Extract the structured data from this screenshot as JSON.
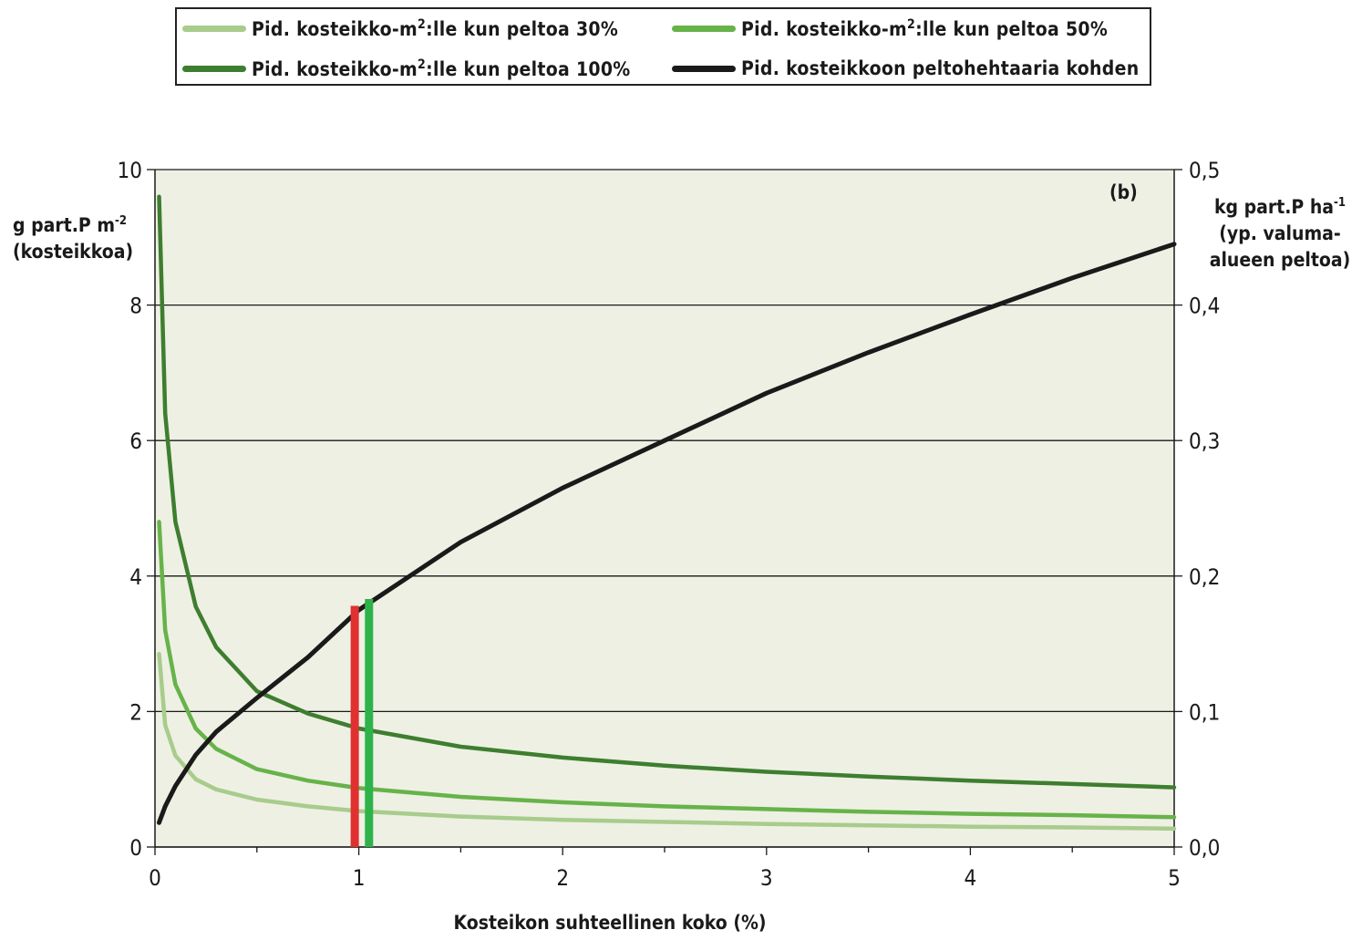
{
  "chart_data": {
    "type": "line",
    "panel_label": "(b)",
    "xlabel": "Kosteikon suhteellinen koko (%)",
    "ylabel_left": [
      "g part.P m",
      "-2",
      "(kosteikkoa)"
    ],
    "ylabel_right": [
      "kg part.P ha",
      "-1",
      "(yp. valuma-",
      "alueen peltoa)"
    ],
    "xlim": [
      0,
      5
    ],
    "ylim_left": [
      0,
      10
    ],
    "ylim_right": [
      0,
      0.5
    ],
    "x_ticks": [
      "0",
      "1",
      "2",
      "3",
      "4",
      "5"
    ],
    "y_ticks_left": [
      "0",
      "2",
      "4",
      "6",
      "8",
      "10"
    ],
    "y_ticks_right": [
      "0,0",
      "0,1",
      "0,2",
      "0,3",
      "0,4",
      "0,5"
    ],
    "grid": true,
    "legend_position": "top",
    "x": [
      0.02,
      0.05,
      0.1,
      0.2,
      0.3,
      0.5,
      0.75,
      1.0,
      1.5,
      2.0,
      2.5,
      3.0,
      3.5,
      4.0,
      4.5,
      5.0
    ],
    "series": [
      {
        "name": "Pid. kosteikko-m²:lle kun peltoa 30%",
        "color": "#a8cc8c",
        "axis": "left",
        "values": [
          2.85,
          1.8,
          1.35,
          1.0,
          0.85,
          0.7,
          0.6,
          0.53,
          0.45,
          0.4,
          0.37,
          0.34,
          0.32,
          0.3,
          0.29,
          0.27
        ]
      },
      {
        "name": "Pid. kosteikko-m²:lle kun peltoa 50%",
        "color": "#67b34a",
        "axis": "left",
        "values": [
          4.8,
          3.2,
          2.4,
          1.75,
          1.45,
          1.15,
          0.98,
          0.87,
          0.74,
          0.66,
          0.6,
          0.56,
          0.52,
          0.49,
          0.47,
          0.44
        ]
      },
      {
        "name": "Pid. kosteikko-m²:lle kun peltoa 100%",
        "color": "#3e7e2f",
        "axis": "left",
        "values": [
          9.6,
          6.4,
          4.8,
          3.55,
          2.95,
          2.3,
          1.97,
          1.75,
          1.48,
          1.32,
          1.2,
          1.11,
          1.04,
          0.98,
          0.93,
          0.88
        ]
      },
      {
        "name": "Pid. kosteikkoon peltohehtaaria kohden",
        "color": "#1a1a1a",
        "axis": "right",
        "values": [
          0.018,
          0.03,
          0.045,
          0.068,
          0.085,
          0.11,
          0.14,
          0.175,
          0.225,
          0.265,
          0.3,
          0.335,
          0.365,
          0.393,
          0.42,
          0.445
        ]
      }
    ],
    "markers": [
      {
        "x": 0.98,
        "y_right": 0.178,
        "color": "#e03030"
      },
      {
        "x": 1.05,
        "y_right": 0.183,
        "color": "#2db34a"
      }
    ]
  },
  "legend": [
    {
      "label_pre": "Pid. kosteikko-m",
      "sup": "2",
      "label_post": ":lle kun peltoa 30%",
      "color": "#a8cc8c"
    },
    {
      "label_pre": "Pid. kosteikko-m",
      "sup": "2",
      "label_post": ":lle kun peltoa 50%",
      "color": "#67b34a"
    },
    {
      "label_pre": "Pid. kosteikko-m",
      "sup": "2",
      "label_post": ":lle kun peltoa 100%",
      "color": "#3e7e2f"
    },
    {
      "label_pre": "Pid. kosteikkoon peltohehtaaria kohden",
      "sup": "",
      "label_post": "",
      "color": "#1a1a1a"
    }
  ]
}
